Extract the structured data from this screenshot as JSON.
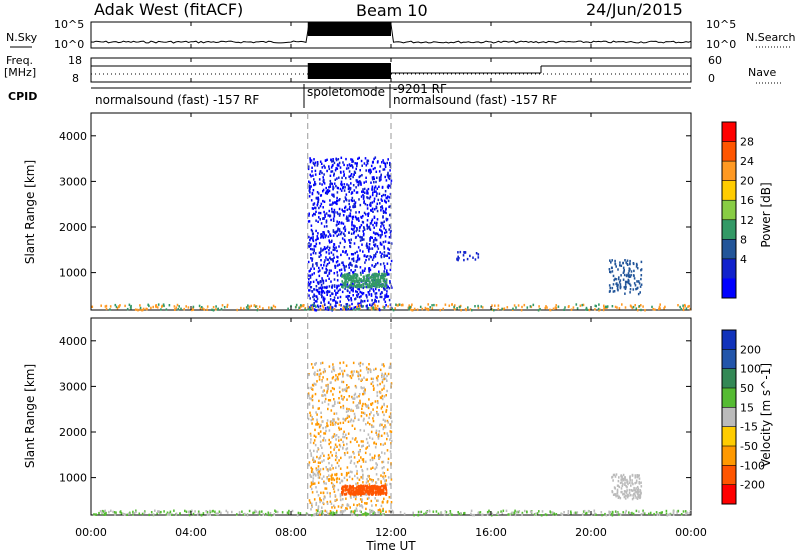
{
  "header": {
    "radar": "Adak West (fitACF)",
    "beam": "Beam 10",
    "date": "24/Jun/2015"
  },
  "noise_panel": {
    "left_label": "N.Sky",
    "right_label": "N.Search",
    "left_ticks": [
      "10^5",
      "10^0"
    ],
    "right_ticks": [
      "10^5",
      "10^0"
    ]
  },
  "freq_panel": {
    "left_label_1": "Freq.",
    "left_label_2": "[MHz]",
    "right_label": "Nave",
    "left_ticks": [
      "18",
      "8"
    ],
    "right_ticks": [
      "60",
      "0"
    ]
  },
  "cpid": {
    "label": "CPID",
    "segments": [
      {
        "text": "normalsound (fast) -157 RF",
        "start_hour": 0
      },
      {
        "text": "spoletomode",
        "start_hour": 8.67
      },
      {
        "text": "-9201 RF",
        "start_hour": 8.67
      },
      {
        "text": "normalsound (fast) -157 RF",
        "start_hour": 12
      }
    ]
  },
  "x_axis": {
    "label": "Time UT",
    "ticks": [
      "00:00",
      "04:00",
      "08:00",
      "12:00",
      "16:00",
      "20:00",
      "00:00"
    ]
  },
  "power_panel": {
    "ylabel": "Slant Range [km]",
    "yticks": [
      "1000",
      "2000",
      "3000",
      "4000"
    ],
    "colorbar_label": "Power [dB]",
    "colorbar_ticks": [
      "28",
      "24",
      "20",
      "16",
      "12",
      "8",
      "4"
    ],
    "colors": [
      "#ff0000",
      "#ff5500",
      "#ff9922",
      "#ffcc00",
      "#88cc44",
      "#339966",
      "#225599",
      "#1122cc",
      "#0000ff"
    ]
  },
  "velocity_panel": {
    "ylabel": "Slant Range [km]",
    "yticks": [
      "1000",
      "2000",
      "3000",
      "4000"
    ],
    "colorbar_label": "Velocity [m s^-1]",
    "colorbar_ticks": [
      "200",
      "100",
      "50",
      "15",
      "-15",
      "-50",
      "-100",
      "-200"
    ],
    "colors": [
      "#1133bb",
      "#2255aa",
      "#338855",
      "#55bb33",
      "#bbbbbb",
      "#ffcc00",
      "#ff9900",
      "#ff5500",
      "#ff0000"
    ]
  },
  "chart_data": {
    "type": "heatmap",
    "title": "Adak West (fitACF) Beam 10 24/Jun/2015",
    "xlabel": "Time UT",
    "ylabel": "Slant Range [km]",
    "xlim_hours": [
      0,
      24
    ],
    "ylim_km": [
      180,
      4500
    ],
    "mode_change_hours": [
      8.67,
      12.0
    ],
    "power_features": [
      {
        "name": "spoletomode noise band",
        "t": [
          8.67,
          12.0
        ],
        "range_km": [
          200,
          3550
        ],
        "power_db": 4
      },
      {
        "name": "echo patch",
        "t": [
          10.0,
          11.8
        ],
        "range_km": [
          700,
          1000
        ],
        "power_db": 14
      },
      {
        "name": "late patch",
        "t": [
          20.7,
          22.0
        ],
        "range_km": [
          550,
          1300
        ],
        "power_db": 10
      },
      {
        "name": "scatter near 15h",
        "t": [
          14.6,
          15.5
        ],
        "range_km": [
          1300,
          1500
        ],
        "power_db": 8
      }
    ],
    "velocity_features": [
      {
        "name": "echo patch",
        "t": [
          10.0,
          11.8
        ],
        "range_km": [
          650,
          850
        ],
        "velocity": -80
      },
      {
        "name": "late patch",
        "t": [
          20.8,
          22.0
        ],
        "range_km": [
          550,
          1100
        ],
        "velocity": 0
      }
    ],
    "nave_step_hour": 18.0
  }
}
